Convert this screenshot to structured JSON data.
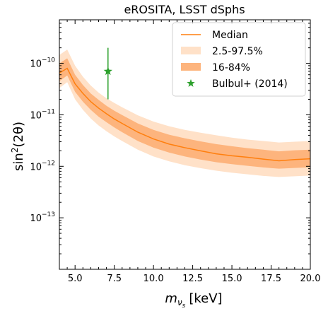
{
  "chart_data": {
    "type": "line",
    "title": "eROSITA, LSST dSphs",
    "xlabel": {
      "base": "m",
      "subscript": "ν",
      "subsubscript": "s",
      "unit": "[keV]"
    },
    "ylabel": {
      "prefix": "sin",
      "exponent": "2",
      "argument": "(2θ)"
    },
    "x_scale": "linear",
    "y_scale": "log",
    "xlim": [
      4.0,
      20.0
    ],
    "ylim": [
      1e-14,
      7e-10
    ],
    "x_ticks": [
      5.0,
      7.5,
      10.0,
      12.5,
      15.0,
      17.5,
      20.0
    ],
    "x_tick_labels": [
      "5.0",
      "7.5",
      "10.0",
      "12.5",
      "15.0",
      "17.5",
      "20.0"
    ],
    "y_ticks": [
      {
        "value": 1e-13,
        "base": "10",
        "exp": "−13"
      },
      {
        "value": 1e-12,
        "base": "10",
        "exp": "−12"
      },
      {
        "value": 1e-11,
        "base": "10",
        "exp": "−11"
      },
      {
        "value": 1e-10,
        "base": "10",
        "exp": "−10"
      }
    ],
    "grid": false,
    "legend_position": "top-right",
    "median": {
      "name": "Median",
      "color": "#ff7f0e",
      "x": [
        4.0,
        4.5,
        5.0,
        5.5,
        6.0,
        6.5,
        7.0,
        7.5,
        8.0,
        9.0,
        10.0,
        11.0,
        12.0,
        13.0,
        14.0,
        15.0,
        16.0,
        17.0,
        18.0,
        19.0,
        20.0
      ],
      "y": [
        6.5e-11,
        8e-11,
        4e-11,
        2.6e-11,
        1.8e-11,
        1.35e-11,
        1.05e-11,
        8.3e-12,
        6.8e-12,
        4.6e-12,
        3.4e-12,
        2.7e-12,
        2.3e-12,
        2e-12,
        1.75e-12,
        1.6e-12,
        1.5e-12,
        1.38e-12,
        1.28e-12,
        1.35e-12,
        1.4e-12
      ]
    },
    "band_95": {
      "name": "2.5-97.5%",
      "color": "#ffe1c8",
      "x": [
        4.0,
        4.5,
        5.0,
        5.5,
        6.0,
        6.5,
        7.0,
        7.5,
        8.0,
        9.0,
        10.0,
        11.0,
        12.0,
        13.0,
        14.0,
        15.0,
        16.0,
        17.0,
        18.0,
        19.0,
        20.0
      ],
      "lower": [
        3.3e-11,
        4.3e-11,
        2e-11,
        1.25e-11,
        8.5e-12,
        6.2e-12,
        4.8e-12,
        3.8e-12,
        3.1e-12,
        2.1e-12,
        1.55e-12,
        1.25e-12,
        1.05e-12,
        9.2e-13,
        8.2e-13,
        7.5e-13,
        7e-13,
        6.5e-13,
        6.2e-13,
        6.4e-13,
        6.6e-13
      ],
      "upper": [
        1.45e-10,
        1.85e-10,
        9e-11,
        5.5e-11,
        3.7e-11,
        2.7e-11,
        2.1e-11,
        1.7e-11,
        1.4e-11,
        9.8e-12,
        7.4e-12,
        6e-12,
        5.1e-12,
        4.5e-12,
        4e-12,
        3.6e-12,
        3.3e-12,
        3.1e-12,
        2.9e-12,
        3e-12,
        3.1e-12
      ]
    },
    "band_68": {
      "name": "16-84%",
      "color": "#fdb47d",
      "x": [
        4.0,
        4.5,
        5.0,
        5.5,
        6.0,
        6.5,
        7.0,
        7.5,
        8.0,
        9.0,
        10.0,
        11.0,
        12.0,
        13.0,
        14.0,
        15.0,
        16.0,
        17.0,
        18.0,
        19.0,
        20.0
      ],
      "lower": [
        4.5e-11,
        5.8e-11,
        2.8e-11,
        1.8e-11,
        1.25e-11,
        9.2e-12,
        7.2e-12,
        5.7e-12,
        4.6e-12,
        3.1e-12,
        2.3e-12,
        1.85e-12,
        1.55e-12,
        1.35e-12,
        1.2e-12,
        1.1e-12,
        1.02e-12,
        9.5e-13,
        9e-13,
        9.3e-13,
        9.6e-13
      ],
      "upper": [
        1e-10,
        1.25e-10,
        6e-11,
        3.8e-11,
        2.6e-11,
        1.95e-11,
        1.5e-11,
        1.2e-11,
        9.9e-12,
        6.8e-12,
        5.1e-12,
        4.1e-12,
        3.5e-12,
        3.05e-12,
        2.7e-12,
        2.45e-12,
        2.25e-12,
        2.1e-12,
        1.95e-12,
        2.05e-12,
        2.1e-12
      ]
    },
    "observation": {
      "name": "Bulbul+ (2014)",
      "color": "#2ca02c",
      "x": 7.1,
      "y": 7e-11,
      "y_low": 2e-11,
      "y_high": 2e-10
    }
  }
}
